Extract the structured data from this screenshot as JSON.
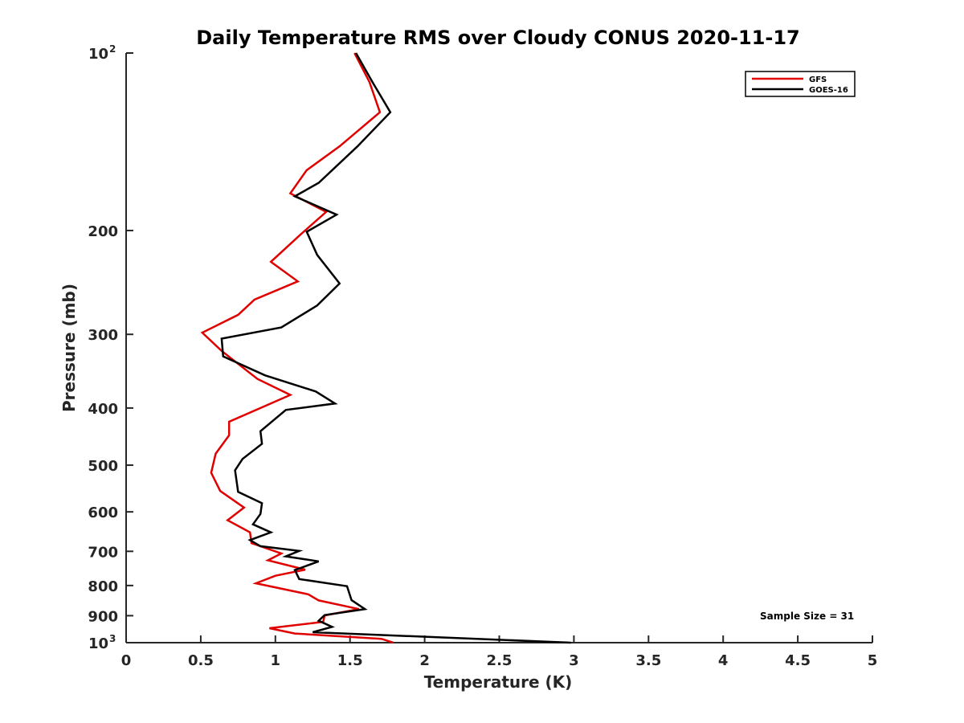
{
  "colors": {
    "gfs": "#e00000",
    "goes": "#000000",
    "axis": "#262626"
  },
  "chart_data": {
    "type": "line",
    "title": "Daily Temperature RMS over Cloudy CONUS 2020-11-17",
    "xlabel": "Temperature (K)",
    "ylabel": "Pressure (mb)",
    "xlim": [
      0,
      5
    ],
    "ylim": [
      100,
      1000
    ],
    "y_scale": "log",
    "y_reversed": true,
    "grid": false,
    "legend_position": "top-right",
    "x_ticks": [
      0,
      0.5,
      1,
      1.5,
      2,
      2.5,
      3,
      3.5,
      4,
      4.5,
      5
    ],
    "x_tick_labels": [
      "0",
      "0.5",
      "1",
      "1.5",
      "2",
      "2.5",
      "3",
      "3.5",
      "4",
      "4.5",
      "5"
    ],
    "y_ticks": [
      {
        "value": 100,
        "base": "10",
        "exp": "2"
      },
      {
        "value": 200,
        "label": "200"
      },
      {
        "value": 300,
        "label": "300"
      },
      {
        "value": 400,
        "label": "400"
      },
      {
        "value": 500,
        "label": "500"
      },
      {
        "value": 600,
        "label": "600"
      },
      {
        "value": 700,
        "label": "700"
      },
      {
        "value": 800,
        "label": "800"
      },
      {
        "value": 900,
        "label": "900"
      },
      {
        "value": 1000,
        "base": "10",
        "exp": "3"
      }
    ],
    "annotation": "Sample Size = 31",
    "series": [
      {
        "name": "GFS",
        "color_key": "gfs",
        "x": [
          1.53,
          1.63,
          1.7,
          1.43,
          1.21,
          1.1,
          1.34,
          1.17,
          0.97,
          1.15,
          0.86,
          0.75,
          0.51,
          0.64,
          0.88,
          1.1,
          0.69,
          0.69,
          0.6,
          0.57,
          0.63,
          0.79,
          0.68,
          0.83,
          0.84,
          1.04,
          0.95,
          1.2,
          1.0,
          0.87,
          1.22,
          1.29,
          1.56,
          1.33,
          1.32,
          0.96,
          1.13,
          1.71,
          1.79
        ],
        "y": [
          100,
          112,
          126,
          144,
          158,
          173,
          186,
          203,
          226,
          244,
          262,
          278,
          298,
          320,
          357,
          380,
          422,
          445,
          478,
          515,
          553,
          590,
          620,
          650,
          678,
          706,
          725,
          752,
          770,
          793,
          828,
          848,
          877,
          899,
          922,
          945,
          965,
          985,
          1000
        ]
      },
      {
        "name": "GOES-16",
        "color_key": "goes",
        "x": [
          1.54,
          1.65,
          1.77,
          1.55,
          1.29,
          1.13,
          1.41,
          1.21,
          1.28,
          1.43,
          1.28,
          1.04,
          0.64,
          0.65,
          0.93,
          1.27,
          1.4,
          1.07,
          0.9,
          0.91,
          0.78,
          0.73,
          0.75,
          0.91,
          0.9,
          0.85,
          0.97,
          0.83,
          0.9,
          1.16,
          1.07,
          1.29,
          1.13,
          1.16,
          1.48,
          1.51,
          1.6,
          1.33,
          1.29,
          1.38,
          1.25,
          2.98
        ],
        "y": [
          100,
          112,
          126,
          144,
          166,
          175,
          188,
          201,
          220,
          246,
          268,
          292,
          305,
          327,
          352,
          375,
          393,
          403,
          438,
          460,
          488,
          510,
          555,
          580,
          605,
          630,
          650,
          670,
          686,
          699,
          714,
          728,
          753,
          780,
          802,
          847,
          877,
          898,
          918,
          940,
          960,
          1000
        ]
      }
    ]
  }
}
